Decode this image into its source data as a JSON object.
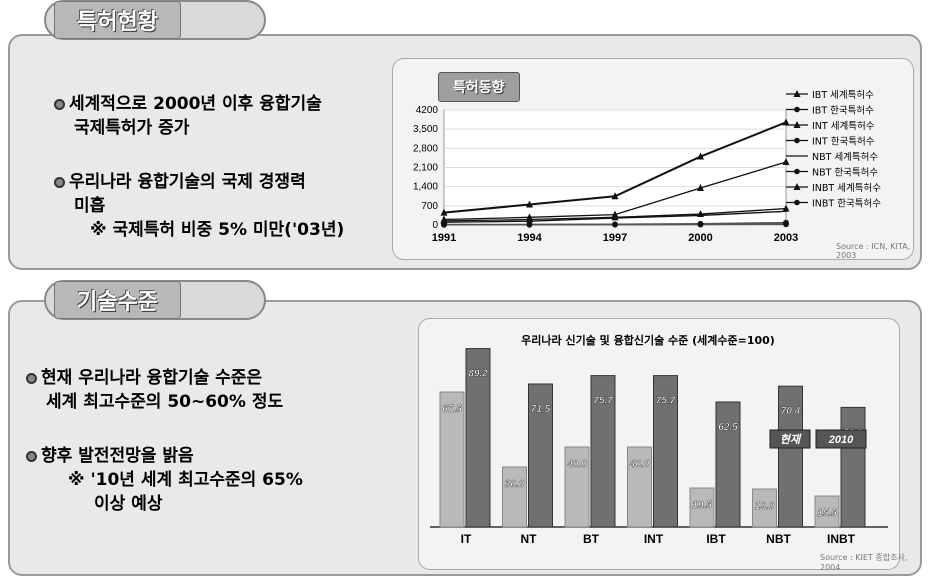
{
  "section1": {
    "tab_title": "특허현황",
    "bullets": [
      {
        "lines": [
          "세계적으로 2000년 이후 융합기술",
          "국제특허가  증가"
        ]
      },
      {
        "lines": [
          "우리나라 융합기술의 국제 경쟁력",
          "미흡"
        ],
        "note": "※ 국제특허 비중 5% 미만('03년)"
      }
    ],
    "chart_label": "특허동향",
    "source": "Source : ICN, KITA, 2003"
  },
  "section2": {
    "tab_title": "기술수준",
    "bullets": [
      {
        "lines": [
          "현재 우리나라 융합기술 수준은",
          "세계 최고수준의 50~60% 정도"
        ]
      },
      {
        "lines": [
          "향후 발전전망을 밝음"
        ],
        "note_lines": [
          "※ '10년 세계 최고수준의 65%",
          "이상 예상"
        ]
      }
    ],
    "source": "Source : KIET 종합조사, 2004"
  },
  "chart_data": [
    {
      "type": "line",
      "x": [
        1991,
        1994,
        1997,
        2000,
        2003
      ],
      "xlim": [
        1991,
        2003
      ],
      "ylim": [
        0,
        4200
      ],
      "yticks": [
        "0",
        "700",
        "1,400",
        "2,100",
        "2,800",
        "3,500",
        "4200"
      ],
      "ylabel": "",
      "legend_position": "right",
      "series": [
        {
          "name": "IBT 세계특허수",
          "values": [
            450,
            750,
            1050,
            2500,
            3750
          ]
        },
        {
          "name": "IBT 한국특허수",
          "values": [
            20,
            25,
            30,
            50,
            90
          ]
        },
        {
          "name": "INT 세계특허수",
          "values": [
            200,
            280,
            380,
            1350,
            2300
          ]
        },
        {
          "name": "INT 한국특허수",
          "values": [
            10,
            15,
            20,
            30,
            50
          ]
        },
        {
          "name": "NBT 세계특허수",
          "values": [
            100,
            140,
            250,
            350,
            500
          ]
        },
        {
          "name": "NBT 한국특허수",
          "values": [
            5,
            8,
            10,
            15,
            20
          ]
        },
        {
          "name": "INBT 세계특허수",
          "values": [
            150,
            200,
            280,
            400,
            600
          ]
        },
        {
          "name": "INBT 한국특허수",
          "values": [
            5,
            8,
            12,
            20,
            30
          ]
        }
      ]
    },
    {
      "type": "bar",
      "title": "우리나라 신기술 및 융합신기술 수준 (세계수준=100)",
      "categories": [
        "IT",
        "NT",
        "BT",
        "INT",
        "IBT",
        "NBT",
        "INBT"
      ],
      "ylim": [
        0,
        100
      ],
      "legend": [
        "현재",
        "2010"
      ],
      "legend_position": "right",
      "series": [
        {
          "name": "현재",
          "values": [
            67.5,
            30.0,
            40.0,
            40.0,
            19.5,
            19.0,
            15.5
          ],
          "labels": [
            "67.5",
            "30.0",
            "40.0",
            "40.0",
            "19.5",
            "19.0",
            "15.5"
          ]
        },
        {
          "name": "2010",
          "values": [
            89.2,
            71.5,
            75.7,
            75.7,
            62.5,
            70.4,
            59.8
          ],
          "labels": [
            "89.2",
            "71.5",
            "75.7",
            "75.7",
            "62.5",
            "70.4",
            "59.8"
          ]
        }
      ],
      "colors": {
        "current": "#b9b9b9",
        "future": "#707070"
      }
    }
  ]
}
